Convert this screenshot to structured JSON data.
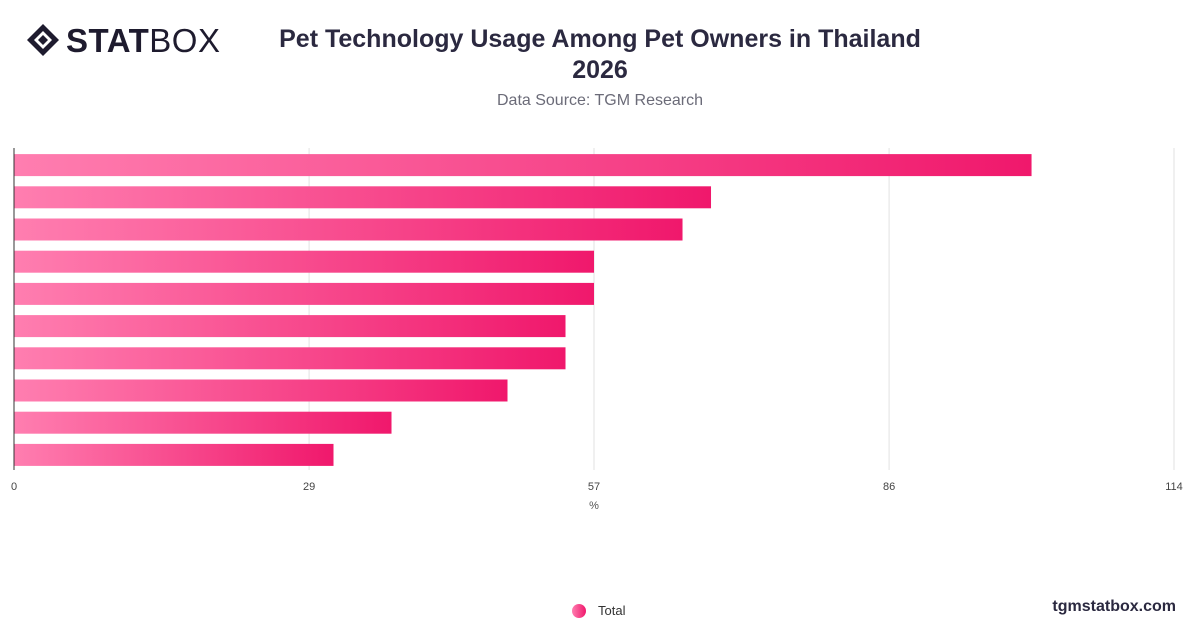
{
  "brand": {
    "name_bold": "STAT",
    "name_regular": "BOX"
  },
  "header": {
    "title_line1": "Pet Technology Usage Among Pet Owners in Thailand",
    "title_line2": "2026",
    "subtitle": "Data Source: TGM Research"
  },
  "footer": {
    "site": "tgmstatbox.com"
  },
  "colors": {
    "bar_start": "#ff7eb0",
    "bar_end": "#f0186c",
    "grid": "#e2e2e2",
    "axis": "#333333"
  },
  "chart_data": {
    "type": "bar",
    "orientation": "horizontal",
    "title": "Pet Technology Usage Among Pet Owners in Thailand 2026",
    "xlabel": "%",
    "xlim": [
      0,
      114
    ],
    "xticks": [
      0,
      29,
      57,
      86,
      114
    ],
    "grid": true,
    "legend_position": "bottom",
    "series": [
      {
        "name": "Total",
        "values": [
          100,
          68.5,
          65.7,
          57,
          57,
          54.2,
          54.2,
          48.5,
          37.1,
          31.4
        ]
      }
    ]
  }
}
